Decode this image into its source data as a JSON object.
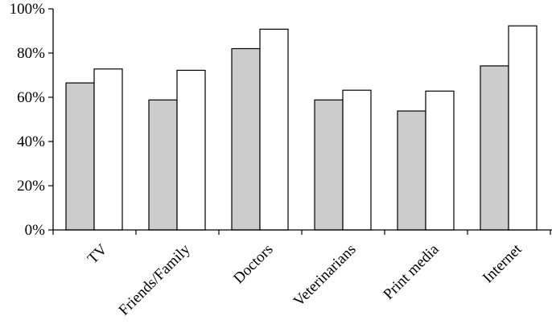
{
  "chart_data": {
    "type": "bar",
    "categories": [
      "TV",
      "Friends/Family",
      "Doctors",
      "Veterinarians",
      "Print media",
      "Internet"
    ],
    "series": [
      {
        "values": [
          66.5,
          58.8,
          82.0,
          58.8,
          53.8,
          74.2
        ],
        "color": "#cccccc"
      },
      {
        "values": [
          72.8,
          72.2,
          90.8,
          63.2,
          62.8,
          92.3
        ],
        "color": "#ffffff"
      }
    ],
    "ylim": [
      0,
      100
    ],
    "yticks": [
      "0%",
      "20%",
      "40%",
      "60%",
      "80%",
      "100%"
    ],
    "ytick_values": [
      0,
      20,
      40,
      60,
      80,
      100
    ],
    "xlabel": "",
    "ylabel": "",
    "title": "",
    "grid": false,
    "x_tick_rotation_deg": -45
  }
}
